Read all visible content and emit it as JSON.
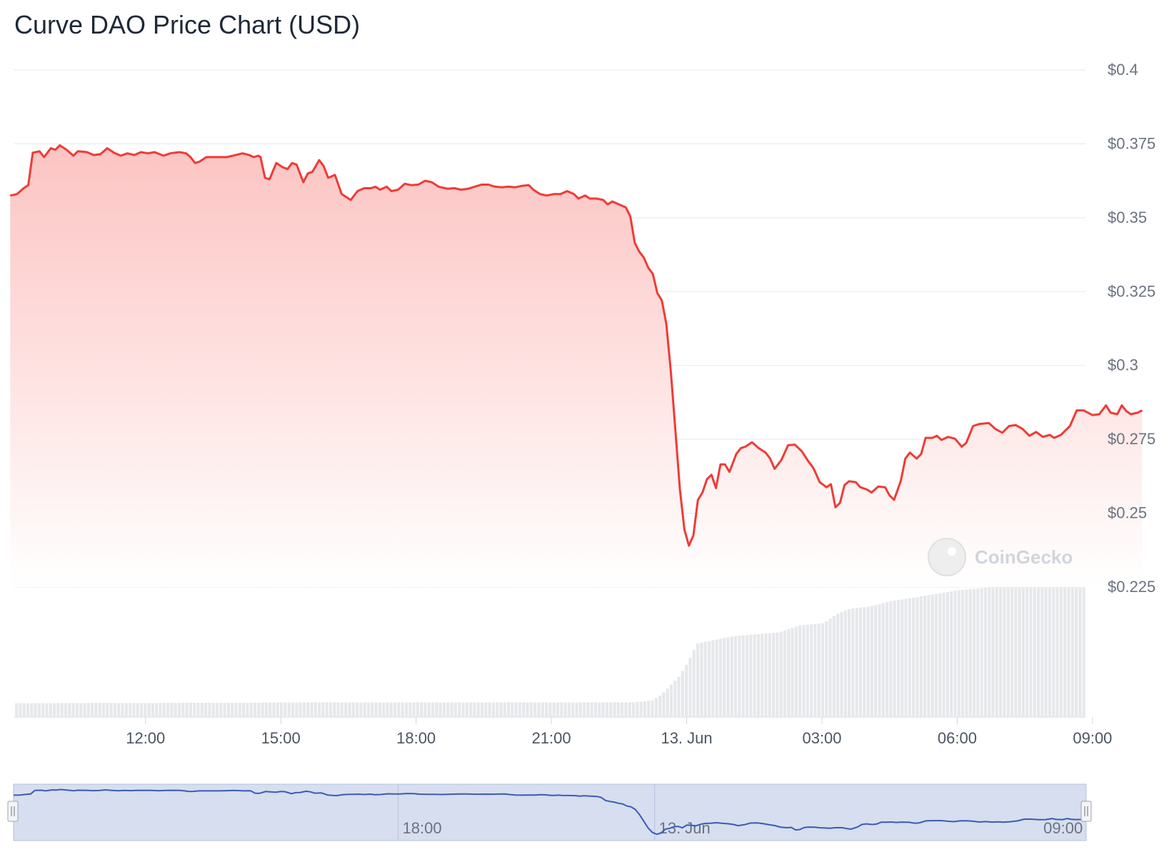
{
  "title": "Curve DAO Price Chart (USD)",
  "watermark": "CoinGecko",
  "colors": {
    "line": "#ef3b36",
    "area_top": "#fcc4c2",
    "area_bottom": "#ffffff",
    "grid": "#e5e7eb",
    "volume": "#e6e8eb",
    "navigator_fill": "#d6deef",
    "navigator_line": "#3b5bb5",
    "navigator_border": "#b7c3de"
  },
  "chart_data": {
    "type": "line",
    "title": "Curve DAO Price Chart (USD)",
    "x_unit": "hours since 09:00 on 12 Jun",
    "ylim": [
      0.225,
      0.4
    ],
    "yticks": [
      0.225,
      0.25,
      0.275,
      0.3,
      0.325,
      0.35,
      0.375,
      0.4
    ],
    "ytick_labels": [
      "$0.225",
      "$0.25",
      "$0.275",
      "$0.3",
      "$0.325",
      "$0.35",
      "$0.375",
      "$0.4"
    ],
    "xticks": [
      {
        "label": "12:00",
        "hour": 3
      },
      {
        "label": "15:00",
        "hour": 6
      },
      {
        "label": "18:00",
        "hour": 9
      },
      {
        "label": "21:00",
        "hour": 12
      },
      {
        "label": "13. Jun",
        "hour": 15
      },
      {
        "label": "03:00",
        "hour": 18
      },
      {
        "label": "06:00",
        "hour": 21
      },
      {
        "label": "09:00",
        "hour": 24
      }
    ],
    "grid": true,
    "series": [
      {
        "name": "Price",
        "points": [
          [
            0.0,
            0.3575
          ],
          [
            0.15,
            0.358
          ],
          [
            0.3,
            0.36
          ],
          [
            0.4,
            0.361
          ],
          [
            0.5,
            0.372
          ],
          [
            0.65,
            0.3725
          ],
          [
            0.75,
            0.3705
          ],
          [
            0.9,
            0.3735
          ],
          [
            1.0,
            0.373
          ],
          [
            1.1,
            0.3745
          ],
          [
            1.25,
            0.373
          ],
          [
            1.4,
            0.371
          ],
          [
            1.5,
            0.3725
          ],
          [
            1.7,
            0.3722
          ],
          [
            1.85,
            0.3712
          ],
          [
            2.0,
            0.3715
          ],
          [
            2.15,
            0.3735
          ],
          [
            2.3,
            0.372
          ],
          [
            2.45,
            0.371
          ],
          [
            2.6,
            0.3718
          ],
          [
            2.75,
            0.3712
          ],
          [
            2.9,
            0.3722
          ],
          [
            3.05,
            0.3718
          ],
          [
            3.2,
            0.3722
          ],
          [
            3.4,
            0.371
          ],
          [
            3.55,
            0.3718
          ],
          [
            3.75,
            0.3722
          ],
          [
            3.9,
            0.3718
          ],
          [
            4.0,
            0.3705
          ],
          [
            4.1,
            0.3685
          ],
          [
            4.2,
            0.369
          ],
          [
            4.35,
            0.3705
          ],
          [
            4.6,
            0.3705
          ],
          [
            4.8,
            0.3705
          ],
          [
            5.0,
            0.3712
          ],
          [
            5.15,
            0.3718
          ],
          [
            5.3,
            0.3712
          ],
          [
            5.4,
            0.3705
          ],
          [
            5.5,
            0.371
          ],
          [
            5.55,
            0.3705
          ],
          [
            5.65,
            0.3635
          ],
          [
            5.75,
            0.363
          ],
          [
            5.9,
            0.3685
          ],
          [
            6.05,
            0.367
          ],
          [
            6.15,
            0.3665
          ],
          [
            6.25,
            0.3685
          ],
          [
            6.35,
            0.368
          ],
          [
            6.5,
            0.362
          ],
          [
            6.6,
            0.365
          ],
          [
            6.7,
            0.3655
          ],
          [
            6.85,
            0.3695
          ],
          [
            6.95,
            0.3675
          ],
          [
            7.05,
            0.3635
          ],
          [
            7.2,
            0.3645
          ],
          [
            7.35,
            0.358
          ],
          [
            7.55,
            0.356
          ],
          [
            7.7,
            0.359
          ],
          [
            7.85,
            0.36
          ],
          [
            8.0,
            0.36
          ],
          [
            8.1,
            0.3605
          ],
          [
            8.2,
            0.3595
          ],
          [
            8.35,
            0.3605
          ],
          [
            8.45,
            0.359
          ],
          [
            8.6,
            0.3595
          ],
          [
            8.75,
            0.3615
          ],
          [
            8.9,
            0.361
          ],
          [
            9.05,
            0.3612
          ],
          [
            9.2,
            0.3625
          ],
          [
            9.35,
            0.362
          ],
          [
            9.5,
            0.3605
          ],
          [
            9.7,
            0.3598
          ],
          [
            9.85,
            0.36
          ],
          [
            10.0,
            0.3595
          ],
          [
            10.15,
            0.3598
          ],
          [
            10.3,
            0.3605
          ],
          [
            10.45,
            0.3612
          ],
          [
            10.6,
            0.3612
          ],
          [
            10.75,
            0.3605
          ],
          [
            10.9,
            0.3603
          ],
          [
            11.05,
            0.3605
          ],
          [
            11.2,
            0.3603
          ],
          [
            11.35,
            0.3608
          ],
          [
            11.5,
            0.361
          ],
          [
            11.6,
            0.3595
          ],
          [
            11.75,
            0.358
          ],
          [
            11.9,
            0.3575
          ],
          [
            12.05,
            0.358
          ],
          [
            12.2,
            0.358
          ],
          [
            12.35,
            0.359
          ],
          [
            12.5,
            0.358
          ],
          [
            12.6,
            0.3565
          ],
          [
            12.75,
            0.3575
          ],
          [
            12.85,
            0.3565
          ],
          [
            13.0,
            0.3565
          ],
          [
            13.15,
            0.356
          ],
          [
            13.25,
            0.3545
          ],
          [
            13.35,
            0.3555
          ],
          [
            13.5,
            0.3545
          ],
          [
            13.65,
            0.3535
          ],
          [
            13.75,
            0.3505
          ],
          [
            13.85,
            0.3415
          ],
          [
            13.95,
            0.3385
          ],
          [
            14.05,
            0.3365
          ],
          [
            14.15,
            0.333
          ],
          [
            14.25,
            0.331
          ],
          [
            14.35,
            0.3245
          ],
          [
            14.45,
            0.322
          ],
          [
            14.55,
            0.314
          ],
          [
            14.65,
            0.298
          ],
          [
            14.75,
            0.278
          ],
          [
            14.85,
            0.258
          ],
          [
            14.95,
            0.2445
          ],
          [
            15.05,
            0.239
          ],
          [
            15.15,
            0.2425
          ],
          [
            15.25,
            0.2545
          ],
          [
            15.35,
            0.257
          ],
          [
            15.45,
            0.2615
          ],
          [
            15.55,
            0.263
          ],
          [
            15.65,
            0.2585
          ],
          [
            15.75,
            0.2665
          ],
          [
            15.85,
            0.2665
          ],
          [
            15.95,
            0.264
          ],
          [
            16.1,
            0.27
          ],
          [
            16.2,
            0.272
          ],
          [
            16.3,
            0.2725
          ],
          [
            16.45,
            0.274
          ],
          [
            16.6,
            0.272
          ],
          [
            16.75,
            0.2705
          ],
          [
            16.85,
            0.2685
          ],
          [
            16.95,
            0.265
          ],
          [
            17.1,
            0.268
          ],
          [
            17.25,
            0.273
          ],
          [
            17.4,
            0.2732
          ],
          [
            17.55,
            0.271
          ],
          [
            17.7,
            0.2675
          ],
          [
            17.8,
            0.2655
          ],
          [
            17.85,
            0.264
          ],
          [
            17.95,
            0.2605
          ],
          [
            18.1,
            0.2588
          ],
          [
            18.2,
            0.2598
          ],
          [
            18.3,
            0.252
          ],
          [
            18.4,
            0.2535
          ],
          [
            18.5,
            0.2595
          ],
          [
            18.6,
            0.2608
          ],
          [
            18.75,
            0.2605
          ],
          [
            18.85,
            0.2588
          ],
          [
            19.0,
            0.258
          ],
          [
            19.1,
            0.257
          ],
          [
            19.25,
            0.259
          ],
          [
            19.4,
            0.2588
          ],
          [
            19.5,
            0.256
          ],
          [
            19.6,
            0.2545
          ],
          [
            19.75,
            0.261
          ],
          [
            19.85,
            0.2685
          ],
          [
            19.95,
            0.2705
          ],
          [
            20.1,
            0.2685
          ],
          [
            20.2,
            0.27
          ],
          [
            20.3,
            0.2755
          ],
          [
            20.45,
            0.2755
          ],
          [
            20.55,
            0.2762
          ],
          [
            20.65,
            0.2748
          ],
          [
            20.8,
            0.2758
          ],
          [
            20.95,
            0.2752
          ],
          [
            21.1,
            0.2725
          ],
          [
            21.2,
            0.2738
          ],
          [
            21.35,
            0.2795
          ],
          [
            21.5,
            0.2802
          ],
          [
            21.7,
            0.2805
          ],
          [
            21.85,
            0.2785
          ],
          [
            22.0,
            0.2772
          ],
          [
            22.15,
            0.2795
          ],
          [
            22.3,
            0.2798
          ],
          [
            22.45,
            0.2785
          ],
          [
            22.6,
            0.2762
          ],
          [
            22.75,
            0.2775
          ],
          [
            22.9,
            0.2758
          ],
          [
            23.05,
            0.2765
          ],
          [
            23.15,
            0.2755
          ],
          [
            23.3,
            0.2765
          ],
          [
            23.5,
            0.2795
          ],
          [
            23.65,
            0.2848
          ],
          [
            23.8,
            0.2848
          ],
          [
            24.0,
            0.2832
          ],
          [
            24.15,
            0.2835
          ],
          [
            24.3,
            0.2865
          ],
          [
            24.4,
            0.284
          ],
          [
            24.55,
            0.2835
          ],
          [
            24.65,
            0.2865
          ],
          [
            24.75,
            0.2845
          ],
          [
            24.85,
            0.2835
          ],
          [
            25.0,
            0.284
          ],
          [
            25.1,
            0.2848
          ]
        ]
      },
      {
        "name": "Volume",
        "points": [
          [
            0.0,
            0.075
          ],
          [
            1.0,
            0.076
          ],
          [
            2.0,
            0.077
          ],
          [
            3.0,
            0.076
          ],
          [
            4.0,
            0.078
          ],
          [
            5.0,
            0.077
          ],
          [
            6.0,
            0.079
          ],
          [
            7.0,
            0.08
          ],
          [
            8.0,
            0.079
          ],
          [
            9.0,
            0.08
          ],
          [
            10.0,
            0.079
          ],
          [
            11.0,
            0.08
          ],
          [
            12.0,
            0.079
          ],
          [
            13.0,
            0.08
          ],
          [
            13.8,
            0.08
          ],
          [
            14.2,
            0.09
          ],
          [
            14.4,
            0.12
          ],
          [
            14.6,
            0.17
          ],
          [
            14.8,
            0.22
          ],
          [
            15.0,
            0.3
          ],
          [
            15.2,
            0.4
          ],
          [
            15.6,
            0.42
          ],
          [
            16.0,
            0.44
          ],
          [
            16.5,
            0.45
          ],
          [
            17.0,
            0.46
          ],
          [
            17.5,
            0.5
          ],
          [
            18.0,
            0.51
          ],
          [
            18.3,
            0.56
          ],
          [
            18.6,
            0.59
          ],
          [
            19.0,
            0.6
          ],
          [
            19.5,
            0.63
          ],
          [
            20.0,
            0.65
          ],
          [
            20.5,
            0.67
          ],
          [
            21.0,
            0.69
          ],
          [
            21.5,
            0.7
          ],
          [
            22.0,
            0.72
          ],
          [
            22.5,
            0.73
          ],
          [
            23.0,
            0.74
          ],
          [
            23.5,
            0.75
          ],
          [
            24.0,
            0.74
          ],
          [
            24.5,
            0.75
          ],
          [
            25.1,
            0.75
          ]
        ]
      }
    ]
  },
  "navigator": {
    "tick_labels": [
      {
        "label": "18:00",
        "hour": 9
      },
      {
        "label": "13. Jun",
        "hour": 15
      },
      {
        "label": "09:00",
        "hour": 24
      }
    ]
  }
}
